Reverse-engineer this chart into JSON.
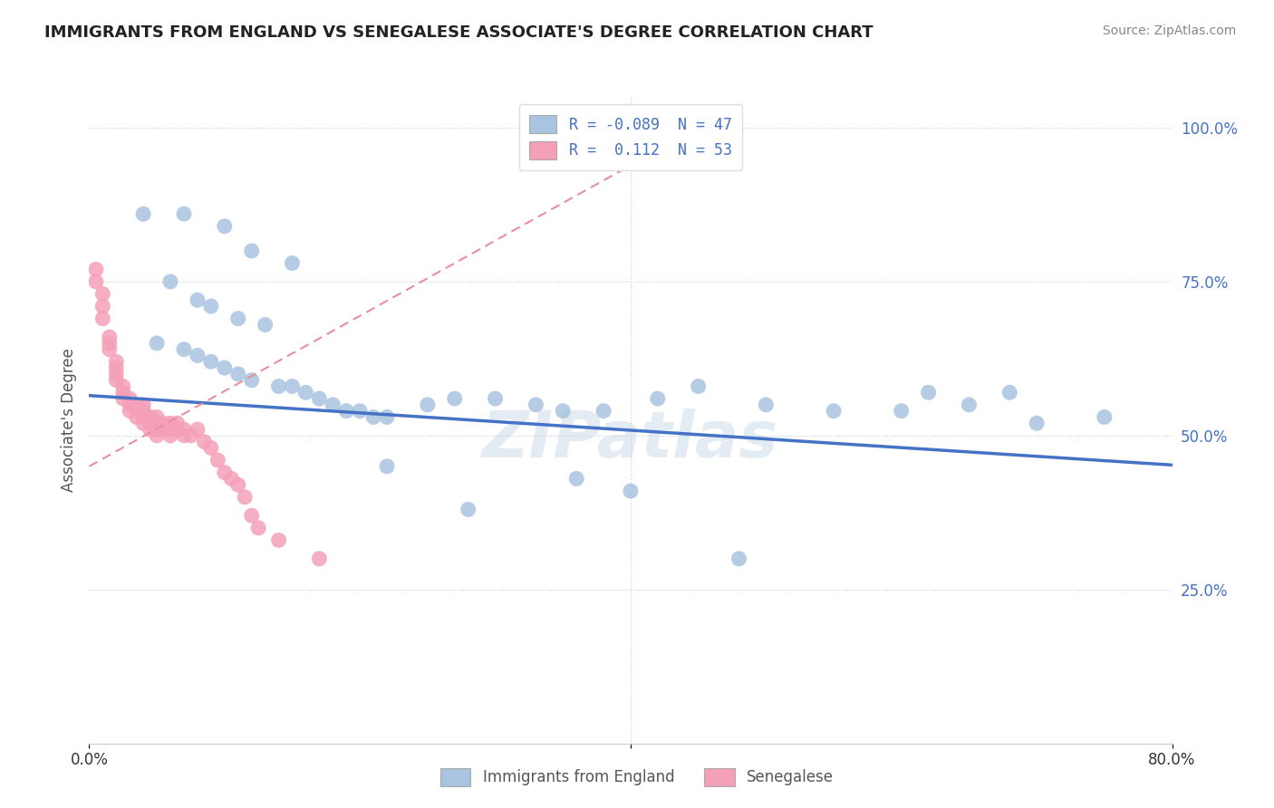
{
  "title": "IMMIGRANTS FROM ENGLAND VS SENEGALESE ASSOCIATE'S DEGREE CORRELATION CHART",
  "source": "Source: ZipAtlas.com",
  "ylabel": "Associate's Degree",
  "ytick_labels": [
    "",
    "25.0%",
    "50.0%",
    "75.0%",
    "100.0%"
  ],
  "xlim": [
    0.0,
    0.8
  ],
  "ylim": [
    0.0,
    1.05
  ],
  "legend_england_R": "-0.089",
  "legend_england_N": "47",
  "legend_senegalese_R": "0.112",
  "legend_senegalese_N": "53",
  "color_england": "#a8c4e0",
  "color_senegalese": "#f4a0b8",
  "color_england_line": "#4472c4",
  "color_senegalese_line": "#e8909a",
  "watermark": "ZIPatlas",
  "england_x": [
    0.04,
    0.07,
    0.1,
    0.12,
    0.15,
    0.06,
    0.08,
    0.09,
    0.11,
    0.13,
    0.05,
    0.07,
    0.08,
    0.09,
    0.1,
    0.11,
    0.12,
    0.14,
    0.15,
    0.16,
    0.17,
    0.18,
    0.19,
    0.2,
    0.21,
    0.22,
    0.25,
    0.27,
    0.3,
    0.33,
    0.35,
    0.38,
    0.42,
    0.45,
    0.5,
    0.55,
    0.6,
    0.65,
    0.7,
    0.75,
    0.36,
    0.4,
    0.28,
    0.48,
    0.62,
    0.68,
    0.22
  ],
  "england_y": [
    0.86,
    0.86,
    0.84,
    0.8,
    0.78,
    0.75,
    0.72,
    0.71,
    0.69,
    0.68,
    0.65,
    0.64,
    0.63,
    0.62,
    0.61,
    0.6,
    0.59,
    0.58,
    0.58,
    0.57,
    0.56,
    0.55,
    0.54,
    0.54,
    0.53,
    0.53,
    0.55,
    0.56,
    0.56,
    0.55,
    0.54,
    0.54,
    0.56,
    0.58,
    0.55,
    0.54,
    0.54,
    0.55,
    0.52,
    0.53,
    0.43,
    0.41,
    0.38,
    0.3,
    0.57,
    0.57,
    0.45
  ],
  "senegalese_x": [
    0.005,
    0.005,
    0.01,
    0.01,
    0.01,
    0.015,
    0.015,
    0.015,
    0.02,
    0.02,
    0.02,
    0.02,
    0.025,
    0.025,
    0.025,
    0.03,
    0.03,
    0.03,
    0.035,
    0.035,
    0.04,
    0.04,
    0.04,
    0.04,
    0.045,
    0.045,
    0.045,
    0.05,
    0.05,
    0.05,
    0.05,
    0.055,
    0.055,
    0.06,
    0.06,
    0.06,
    0.065,
    0.065,
    0.07,
    0.07,
    0.075,
    0.08,
    0.085,
    0.09,
    0.095,
    0.1,
    0.105,
    0.11,
    0.115,
    0.12,
    0.125,
    0.14,
    0.17
  ],
  "senegalese_y": [
    0.77,
    0.75,
    0.73,
    0.71,
    0.69,
    0.66,
    0.65,
    0.64,
    0.62,
    0.61,
    0.6,
    0.59,
    0.58,
    0.57,
    0.56,
    0.55,
    0.56,
    0.54,
    0.55,
    0.53,
    0.55,
    0.54,
    0.53,
    0.52,
    0.53,
    0.52,
    0.51,
    0.53,
    0.52,
    0.51,
    0.5,
    0.52,
    0.51,
    0.52,
    0.51,
    0.5,
    0.52,
    0.51,
    0.51,
    0.5,
    0.5,
    0.51,
    0.49,
    0.48,
    0.46,
    0.44,
    0.43,
    0.42,
    0.4,
    0.37,
    0.35,
    0.33,
    0.3
  ]
}
